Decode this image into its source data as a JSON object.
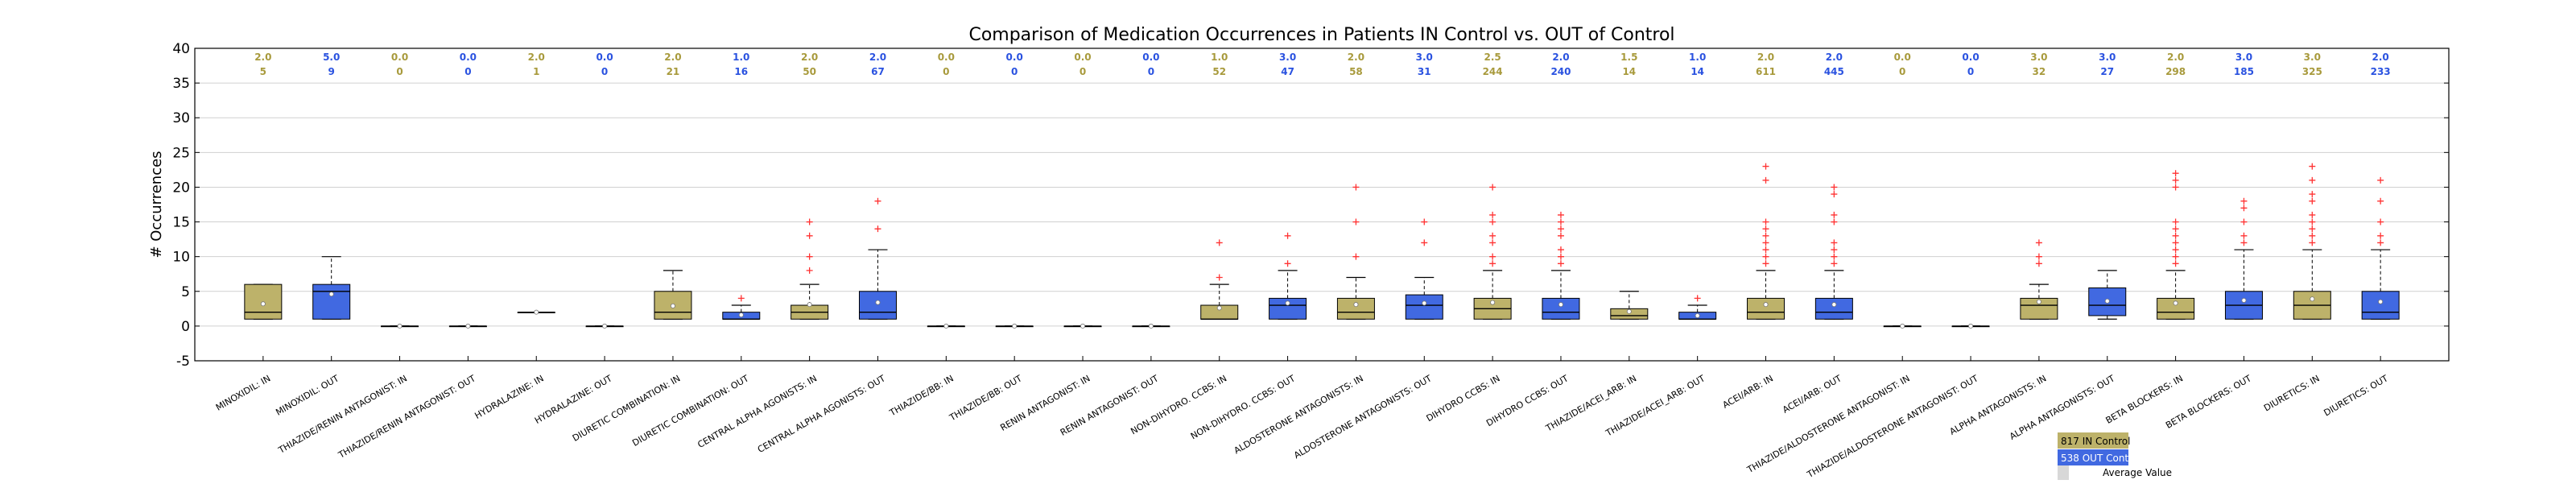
{
  "chart_data": {
    "type": "box",
    "title": "Comparison of Medication Occurrences in Patients IN Control vs. OUT of Control",
    "xlabel": "",
    "ylabel": "# Occurrences",
    "ylim": [
      -5,
      40
    ],
    "yticks": [
      -5,
      0,
      5,
      10,
      15,
      20,
      25,
      30,
      35,
      40
    ],
    "grid": "y",
    "legend": {
      "placement": "bottom-right",
      "entries": [
        {
          "label": "817 IN Control",
          "color": "#bdb26a"
        },
        {
          "label": "538 OUT Control",
          "color": "#4169e1"
        },
        {
          "label": "Average Value",
          "color": "#ffffff"
        }
      ]
    },
    "colors": {
      "in": "#bdb26a",
      "out": "#4169e1",
      "outlier": "#ff3333",
      "median": "#000000",
      "median_label_in": "#a89a3c",
      "median_label_out": "#2a52e0"
    },
    "boxes": [
      {
        "label": "MINOXIDIL: IN",
        "group": "in",
        "median_label": "2.0",
        "count_label": "5",
        "q1": 1,
        "med": 2,
        "q3": 6,
        "wlo": 1,
        "whi": 6,
        "mean": 3.2,
        "outliers": []
      },
      {
        "label": "MINOXIDIL: OUT",
        "group": "out",
        "median_label": "5.0",
        "count_label": "9",
        "q1": 1,
        "med": 5,
        "q3": 6,
        "wlo": 1,
        "whi": 10,
        "mean": 4.6,
        "outliers": []
      },
      {
        "label": "THIAZIDE/RENIN ANTAGONIST: IN",
        "group": "in",
        "median_label": "0.0",
        "count_label": "0",
        "q1": 0,
        "med": 0,
        "q3": 0,
        "wlo": 0,
        "whi": 0,
        "mean": 0,
        "outliers": []
      },
      {
        "label": "THIAZIDE/RENIN ANTAGONIST: OUT",
        "group": "out",
        "median_label": "0.0",
        "count_label": "0",
        "q1": 0,
        "med": 0,
        "q3": 0,
        "wlo": 0,
        "whi": 0,
        "mean": 0,
        "outliers": []
      },
      {
        "label": "HYDRALAZINE: IN",
        "group": "in",
        "median_label": "2.0",
        "count_label": "1",
        "q1": 2,
        "med": 2,
        "q3": 2,
        "wlo": 2,
        "whi": 2,
        "mean": 2,
        "outliers": []
      },
      {
        "label": "HYDRALAZINE: OUT",
        "group": "out",
        "median_label": "0.0",
        "count_label": "0",
        "q1": 0,
        "med": 0,
        "q3": 0,
        "wlo": 0,
        "whi": 0,
        "mean": 0,
        "outliers": []
      },
      {
        "label": "DIURETIC COMBINATION: IN",
        "group": "in",
        "median_label": "2.0",
        "count_label": "21",
        "q1": 1,
        "med": 2,
        "q3": 5,
        "wlo": 1,
        "whi": 8,
        "mean": 2.9,
        "outliers": []
      },
      {
        "label": "DIURETIC COMBINATION: OUT",
        "group": "out",
        "median_label": "1.0",
        "count_label": "16",
        "q1": 1,
        "med": 1,
        "q3": 2,
        "wlo": 1,
        "whi": 3,
        "mean": 1.6,
        "outliers": [
          4
        ]
      },
      {
        "label": "CENTRAL ALPHA AGONISTS: IN",
        "group": "in",
        "median_label": "2.0",
        "count_label": "50",
        "q1": 1,
        "med": 2,
        "q3": 3,
        "wlo": 1,
        "whi": 6,
        "mean": 3.1,
        "outliers": [
          8,
          10,
          13,
          15
        ]
      },
      {
        "label": "CENTRAL ALPHA AGONISTS: OUT",
        "group": "out",
        "median_label": "2.0",
        "count_label": "67",
        "q1": 1,
        "med": 2,
        "q3": 5,
        "wlo": 1,
        "whi": 11,
        "mean": 3.4,
        "outliers": [
          14,
          18
        ]
      },
      {
        "label": "THIAZIDE/BB: IN",
        "group": "in",
        "median_label": "0.0",
        "count_label": "0",
        "q1": 0,
        "med": 0,
        "q3": 0,
        "wlo": 0,
        "whi": 0,
        "mean": 0,
        "outliers": []
      },
      {
        "label": "THIAZIDE/BB: OUT",
        "group": "out",
        "median_label": "0.0",
        "count_label": "0",
        "q1": 0,
        "med": 0,
        "q3": 0,
        "wlo": 0,
        "whi": 0,
        "mean": 0,
        "outliers": []
      },
      {
        "label": "RENIN ANTAGONIST: IN",
        "group": "in",
        "median_label": "0.0",
        "count_label": "0",
        "q1": 0,
        "med": 0,
        "q3": 0,
        "wlo": 0,
        "whi": 0,
        "mean": 0,
        "outliers": []
      },
      {
        "label": "RENIN ANTAGONIST: OUT",
        "group": "out",
        "median_label": "0.0",
        "count_label": "0",
        "q1": 0,
        "med": 0,
        "q3": 0,
        "wlo": 0,
        "whi": 0,
        "mean": 0,
        "outliers": []
      },
      {
        "label": "NON-DIHYDRO. CCBS: IN",
        "group": "in",
        "median_label": "1.0",
        "count_label": "52",
        "q1": 1,
        "med": 1,
        "q3": 3,
        "wlo": 1,
        "whi": 6,
        "mean": 2.6,
        "outliers": [
          7,
          12
        ]
      },
      {
        "label": "NON-DIHYDRO. CCBS: OUT",
        "group": "out",
        "median_label": "3.0",
        "count_label": "47",
        "q1": 1,
        "med": 3,
        "q3": 4,
        "wlo": 1,
        "whi": 8,
        "mean": 3.3,
        "outliers": [
          9,
          13
        ]
      },
      {
        "label": "ALDOSTERONE ANTAGONISTS: IN",
        "group": "in",
        "median_label": "2.0",
        "count_label": "58",
        "q1": 1,
        "med": 2,
        "q3": 4,
        "wlo": 1,
        "whi": 7,
        "mean": 3.1,
        "outliers": [
          10,
          15,
          20
        ]
      },
      {
        "label": "ALDOSTERONE ANTAGONISTS: OUT",
        "group": "out",
        "median_label": "3.0",
        "count_label": "31",
        "q1": 1,
        "med": 3,
        "q3": 4.5,
        "wlo": 1,
        "whi": 7,
        "mean": 3.3,
        "outliers": [
          12,
          15
        ]
      },
      {
        "label": "DIHYDRO CCBS: IN",
        "group": "in",
        "median_label": "2.5",
        "count_label": "244",
        "q1": 1,
        "med": 2.5,
        "q3": 4,
        "wlo": 1,
        "whi": 8,
        "mean": 3.4,
        "outliers": [
          9,
          10,
          12,
          13,
          15,
          16,
          20
        ]
      },
      {
        "label": "DIHYDRO CCBS: OUT",
        "group": "out",
        "median_label": "2.0",
        "count_label": "240",
        "q1": 1,
        "med": 2,
        "q3": 4,
        "wlo": 1,
        "whi": 8,
        "mean": 3.1,
        "outliers": [
          9,
          10,
          11,
          13,
          14,
          15,
          16
        ]
      },
      {
        "label": "THIAZIDE/ACEI_ARB: IN",
        "group": "in",
        "median_label": "1.5",
        "count_label": "14",
        "q1": 1,
        "med": 1.5,
        "q3": 2.5,
        "wlo": 1,
        "whi": 5,
        "mean": 2.1,
        "outliers": []
      },
      {
        "label": "THIAZIDE/ACEI_ARB: OUT",
        "group": "out",
        "median_label": "1.0",
        "count_label": "14",
        "q1": 1,
        "med": 1,
        "q3": 2,
        "wlo": 1,
        "whi": 3,
        "mean": 1.5,
        "outliers": [
          4
        ]
      },
      {
        "label": "ACEI/ARB: IN",
        "group": "in",
        "median_label": "2.0",
        "count_label": "611",
        "q1": 1,
        "med": 2,
        "q3": 4,
        "wlo": 1,
        "whi": 8,
        "mean": 3.1,
        "outliers": [
          9,
          10,
          11,
          12,
          13,
          14,
          15,
          21,
          23
        ]
      },
      {
        "label": "ACEI/ARB: OUT",
        "group": "out",
        "median_label": "2.0",
        "count_label": "445",
        "q1": 1,
        "med": 2,
        "q3": 4,
        "wlo": 1,
        "whi": 8,
        "mean": 3.1,
        "outliers": [
          9,
          10,
          11,
          12,
          15,
          16,
          19,
          20
        ]
      },
      {
        "label": "THIAZIDE/ALDOSTERONE ANTAGONIST: IN",
        "group": "in",
        "median_label": "0.0",
        "count_label": "0",
        "q1": 0,
        "med": 0,
        "q3": 0,
        "wlo": 0,
        "whi": 0,
        "mean": 0,
        "outliers": []
      },
      {
        "label": "THIAZIDE/ALDOSTERONE ANTAGONIST: OUT",
        "group": "out",
        "median_label": "0.0",
        "count_label": "0",
        "q1": 0,
        "med": 0,
        "q3": 0,
        "wlo": 0,
        "whi": 0,
        "mean": 0,
        "outliers": []
      },
      {
        "label": "ALPHA ANTAGONISTS: IN",
        "group": "in",
        "median_label": "3.0",
        "count_label": "32",
        "q1": 1,
        "med": 3,
        "q3": 4,
        "wlo": 1,
        "whi": 6,
        "mean": 3.5,
        "outliers": [
          9,
          10,
          12
        ]
      },
      {
        "label": "ALPHA ANTAGONISTS: OUT",
        "group": "out",
        "median_label": "3.0",
        "count_label": "27",
        "q1": 1.5,
        "med": 3,
        "q3": 5.5,
        "wlo": 1,
        "whi": 8,
        "mean": 3.6,
        "outliers": []
      },
      {
        "label": "BETA BLOCKERS: IN",
        "group": "in",
        "median_label": "2.0",
        "count_label": "298",
        "q1": 1,
        "med": 2,
        "q3": 4,
        "wlo": 1,
        "whi": 8,
        "mean": 3.3,
        "outliers": [
          9,
          10,
          11,
          12,
          13,
          14,
          15,
          20,
          21,
          22
        ]
      },
      {
        "label": "BETA BLOCKERS: OUT",
        "group": "out",
        "median_label": "3.0",
        "count_label": "185",
        "q1": 1,
        "med": 3,
        "q3": 5,
        "wlo": 1,
        "whi": 11,
        "mean": 3.7,
        "outliers": [
          12,
          13,
          15,
          17,
          18
        ]
      },
      {
        "label": "DIURETICS: IN",
        "group": "in",
        "median_label": "3.0",
        "count_label": "325",
        "q1": 1,
        "med": 3,
        "q3": 5,
        "wlo": 1,
        "whi": 11,
        "mean": 3.9,
        "outliers": [
          12,
          13,
          14,
          15,
          16,
          18,
          19,
          21,
          23
        ]
      },
      {
        "label": "DIURETICS: OUT",
        "group": "out",
        "median_label": "2.0",
        "count_label": "233",
        "q1": 1,
        "med": 2,
        "q3": 5,
        "wlo": 1,
        "whi": 11,
        "mean": 3.5,
        "outliers": [
          12,
          13,
          15,
          18,
          21
        ]
      }
    ]
  }
}
